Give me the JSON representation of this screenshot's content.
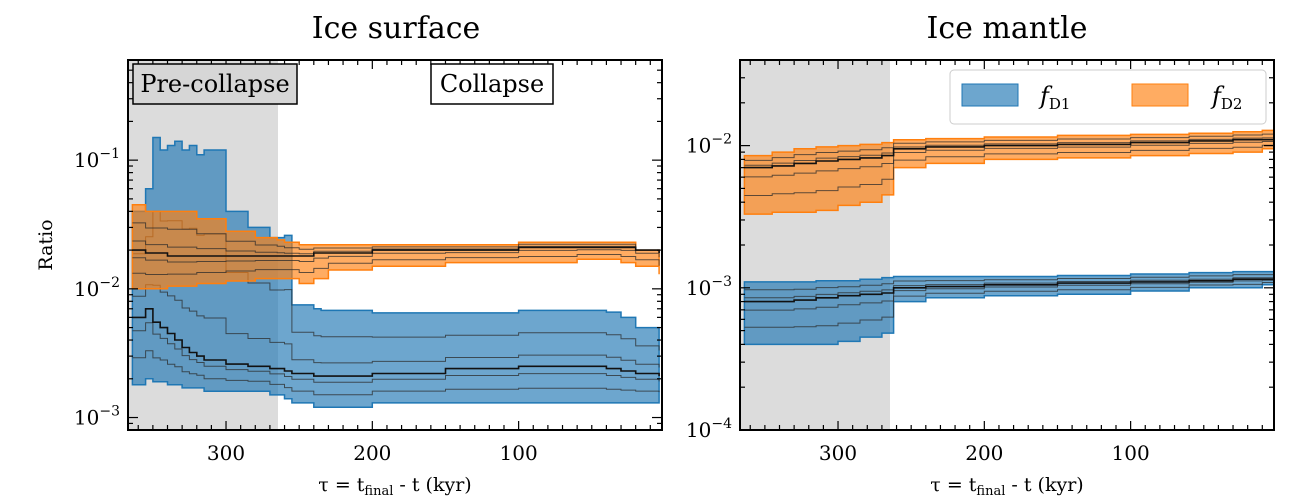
{
  "chart_data": [
    {
      "type": "area",
      "scale": "log",
      "title": "Ice surface",
      "xlabel": "τ = t_final - t (kyr)",
      "ylabel": "Ratio",
      "xlim": [
        367,
        2
      ],
      "ylim": [
        0.0008,
        0.6
      ],
      "xticks": [
        300,
        200,
        100
      ],
      "yticks": [
        0.001,
        0.01,
        0.1
      ],
      "shaded_region": {
        "x": [
          367,
          260
        ],
        "color": "#dcdcdc"
      },
      "annotations": [
        "Pre-collapse",
        "Collapse"
      ],
      "series": [
        {
          "name": "f_D1",
          "color": "#1f77b4",
          "x": [
            364,
            355,
            350,
            345,
            340,
            335,
            330,
            325,
            320,
            315,
            300,
            285,
            270,
            260,
            255,
            240,
            235,
            230,
            200,
            150,
            100,
            60,
            40,
            30,
            20,
            4
          ],
          "upper": [
            0.04,
            0.06,
            0.15,
            0.12,
            0.13,
            0.14,
            0.12,
            0.13,
            0.11,
            0.12,
            0.04,
            0.03,
            0.025,
            0.026,
            0.0075,
            0.007,
            0.0068,
            0.0068,
            0.0065,
            0.0065,
            0.0068,
            0.0068,
            0.0066,
            0.006,
            0.005,
            0.0045
          ],
          "lower": [
            0.0018,
            0.002,
            0.0019,
            0.0019,
            0.0018,
            0.0018,
            0.0017,
            0.0017,
            0.0017,
            0.0016,
            0.0016,
            0.0016,
            0.0015,
            0.0014,
            0.0013,
            0.0012,
            0.0012,
            0.0012,
            0.0013,
            0.0013,
            0.0013,
            0.0013,
            0.0013,
            0.0013,
            0.0013,
            0.0013
          ],
          "median": [
            0.006,
            0.007,
            0.0055,
            0.005,
            0.0045,
            0.004,
            0.0035,
            0.0032,
            0.003,
            0.0028,
            0.0026,
            0.0025,
            0.0024,
            0.0023,
            0.0022,
            0.0021,
            0.0021,
            0.0021,
            0.0022,
            0.0024,
            0.0025,
            0.0025,
            0.0024,
            0.0023,
            0.0022,
            0.0021
          ]
        },
        {
          "name": "f_D2",
          "color": "#ff7f0e",
          "x": [
            364,
            355,
            340,
            320,
            300,
            280,
            265,
            260,
            250,
            240,
            230,
            200,
            150,
            100,
            60,
            30,
            20,
            4
          ],
          "upper": [
            0.045,
            0.04,
            0.04,
            0.035,
            0.028,
            0.025,
            0.024,
            0.023,
            0.022,
            0.022,
            0.022,
            0.022,
            0.022,
            0.023,
            0.023,
            0.023,
            0.02,
            0.019
          ],
          "lower": [
            0.01,
            0.01,
            0.0105,
            0.011,
            0.0115,
            0.012,
            0.012,
            0.012,
            0.011,
            0.012,
            0.014,
            0.015,
            0.016,
            0.016,
            0.017,
            0.016,
            0.015,
            0.013
          ],
          "median": [
            0.02,
            0.019,
            0.018,
            0.018,
            0.018,
            0.018,
            0.018,
            0.018,
            0.018,
            0.019,
            0.019,
            0.02,
            0.02,
            0.021,
            0.021,
            0.021,
            0.02,
            0.019
          ]
        }
      ]
    },
    {
      "type": "area",
      "scale": "log",
      "title": "Ice mantle",
      "xlabel": "τ = t_final - t (kyr)",
      "ylabel": "",
      "xlim": [
        367,
        2
      ],
      "ylim": [
        0.0001,
        0.04
      ],
      "xticks": [
        300,
        200,
        100
      ],
      "yticks": [
        0.0001,
        0.001,
        0.01
      ],
      "shaded_region": {
        "x": [
          367,
          260
        ],
        "color": "#dcdcdc"
      },
      "legend": {
        "position": "top-right",
        "entries": [
          "f_D1",
          "f_D2"
        ]
      },
      "series": [
        {
          "name": "f_D1",
          "color": "#1f77b4",
          "x": [
            364,
            345,
            330,
            315,
            300,
            285,
            270,
            262,
            240,
            200,
            150,
            100,
            60,
            30,
            10,
            2
          ],
          "upper": [
            0.0011,
            0.0011,
            0.0011,
            0.00112,
            0.00112,
            0.00115,
            0.00118,
            0.0012,
            0.0012,
            0.0012,
            0.00122,
            0.00125,
            0.00128,
            0.0013,
            0.0013,
            0.0013
          ],
          "lower": [
            0.0004,
            0.0004,
            0.0004,
            0.0004,
            0.00042,
            0.00045,
            0.00048,
            0.0008,
            0.00085,
            0.00088,
            0.0009,
            0.00095,
            0.001,
            0.001,
            0.00105,
            0.00105
          ],
          "median": [
            0.0008,
            0.0008,
            0.00082,
            0.00085,
            0.00088,
            0.0009,
            0.00092,
            0.001,
            0.00102,
            0.00105,
            0.00108,
            0.0011,
            0.00112,
            0.00115,
            0.00115,
            0.00115
          ]
        },
        {
          "name": "f_D2",
          "color": "#ff7f0e",
          "x": [
            364,
            345,
            330,
            315,
            300,
            285,
            270,
            262,
            240,
            200,
            150,
            100,
            60,
            30,
            10,
            2
          ],
          "upper": [
            0.0085,
            0.009,
            0.0095,
            0.0098,
            0.01,
            0.0102,
            0.0105,
            0.011,
            0.0112,
            0.0115,
            0.0118,
            0.012,
            0.0122,
            0.0125,
            0.0128,
            0.0128
          ],
          "lower": [
            0.0033,
            0.0034,
            0.0034,
            0.0035,
            0.0038,
            0.004,
            0.0045,
            0.007,
            0.0075,
            0.008,
            0.0082,
            0.0085,
            0.0088,
            0.009,
            0.0095,
            0.0095
          ],
          "median": [
            0.007,
            0.0072,
            0.0075,
            0.0078,
            0.008,
            0.0082,
            0.0085,
            0.0095,
            0.0098,
            0.01,
            0.0102,
            0.0105,
            0.0108,
            0.011,
            0.011,
            0.011
          ]
        }
      ]
    }
  ]
}
